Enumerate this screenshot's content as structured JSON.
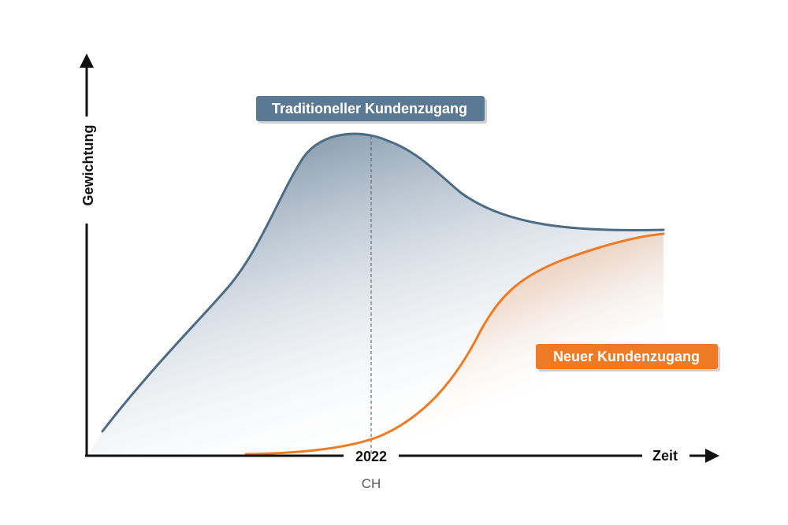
{
  "axes": {
    "y_label": "Gewichtung",
    "x_label": "Zeit"
  },
  "marker": {
    "year": "2022",
    "region": "CH"
  },
  "series": {
    "traditional": {
      "label": "Traditioneller Kundenzugang",
      "color": "#4c6b85",
      "tag_color": "#5a7a93"
    },
    "new": {
      "label": "Neuer Kundenzugang",
      "color": "#f07a22",
      "tag_color": "#ee7a28"
    }
  }
}
